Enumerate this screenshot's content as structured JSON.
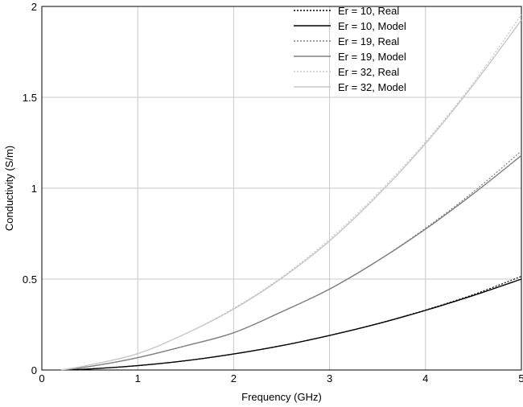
{
  "chart_data": {
    "type": "line",
    "title": "",
    "xlabel": "Frequency (GHz)",
    "ylabel": "Conductivity (S/m)",
    "xlim": [
      0,
      5
    ],
    "ylim": [
      0,
      2
    ],
    "grid": true,
    "legend_position": "top-right",
    "x_ticks": [
      "0",
      "1",
      "2",
      "3",
      "4",
      "5"
    ],
    "y_ticks": [
      "0",
      "0.5",
      "1",
      "1.5",
      "2"
    ],
    "x": [
      0.2,
      0.5,
      1.0,
      1.5,
      2.0,
      2.5,
      3.0,
      3.5,
      4.0,
      4.5,
      5.0
    ],
    "series": [
      {
        "name": "Er = 10, Real",
        "color": "#000000",
        "dash": "dotted",
        "values": [
          0.0,
          0.006,
          0.024,
          0.051,
          0.088,
          0.134,
          0.19,
          0.255,
          0.33,
          0.415,
          0.515
        ]
      },
      {
        "name": "Er = 10, Model",
        "color": "#000000",
        "dash": "solid",
        "values": [
          0.0,
          0.006,
          0.024,
          0.051,
          0.088,
          0.134,
          0.19,
          0.254,
          0.328,
          0.41,
          0.5
        ]
      },
      {
        "name": "Er = 19, Real",
        "color": "#808080",
        "dash": "dotted",
        "values": [
          0.0,
          0.019,
          0.068,
          0.133,
          0.205,
          0.32,
          0.445,
          0.6,
          0.78,
          0.98,
          1.205
        ]
      },
      {
        "name": "Er = 19, Model",
        "color": "#808080",
        "dash": "solid",
        "values": [
          0.0,
          0.019,
          0.068,
          0.133,
          0.205,
          0.32,
          0.445,
          0.6,
          0.775,
          0.97,
          1.18
        ]
      },
      {
        "name": "Er = 32, Real",
        "color": "#c8c8c8",
        "dash": "dotted",
        "values": [
          0.0,
          0.028,
          0.09,
          0.2,
          0.34,
          0.51,
          0.72,
          0.97,
          1.255,
          1.58,
          1.955
        ]
      },
      {
        "name": "Er = 32, Model",
        "color": "#c8c8c8",
        "dash": "solid",
        "values": [
          0.0,
          0.028,
          0.09,
          0.2,
          0.335,
          0.505,
          0.71,
          0.96,
          1.245,
          1.57,
          1.925
        ]
      }
    ]
  }
}
